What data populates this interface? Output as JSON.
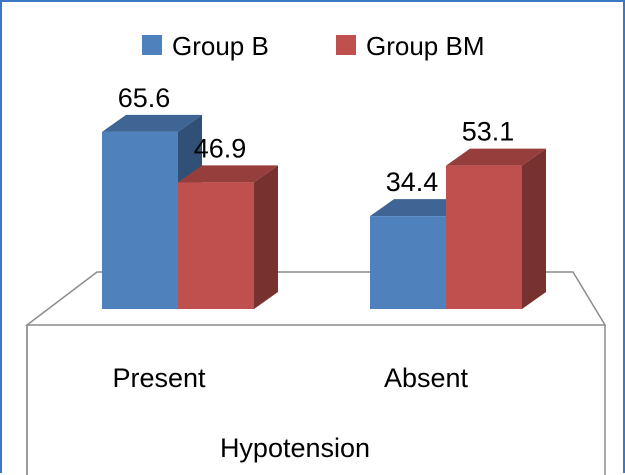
{
  "chart_data": {
    "type": "bar",
    "xlabel": "Hypotension",
    "categories": [
      "Present",
      "Absent"
    ],
    "series": [
      {
        "name": "Group B",
        "values": [
          65.6,
          34.4
        ],
        "color": "#4f81bd"
      },
      {
        "name": "Group BM",
        "values": [
          46.9,
          53.1
        ],
        "color": "#c0504d"
      }
    ],
    "data_labels": true,
    "legend": "top",
    "style": "3d-clustered-column",
    "ylim": [
      0,
      70
    ],
    "grid": false
  }
}
